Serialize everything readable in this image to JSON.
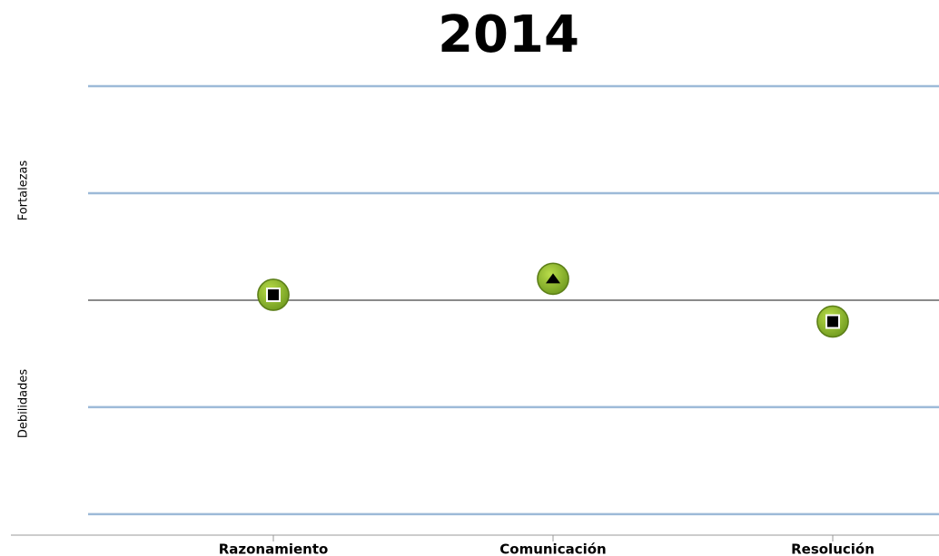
{
  "chart_data": {
    "type": "dot",
    "title": "2014",
    "categories": [
      "Razonamiento",
      "Comunicación",
      "Resolución"
    ],
    "values": [
      0.05,
      0.2,
      -0.2
    ],
    "markers": [
      "square",
      "triangle",
      "square"
    ],
    "color": "#8db52b",
    "y_label_top": "Fortalezas",
    "y_label_bottom": "Debilidades",
    "ylim": [
      -2.2,
      2
    ],
    "yticks": [
      -2,
      -1,
      0,
      1,
      2
    ],
    "grid": true
  }
}
